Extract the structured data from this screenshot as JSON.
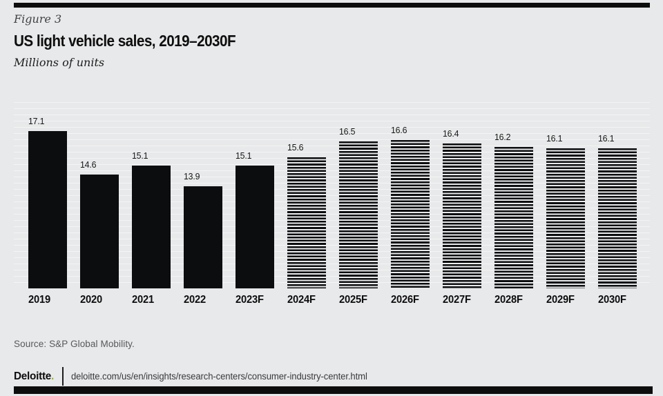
{
  "figure_label": "Figure 3",
  "title": "US light vehicle sales, 2019–2030F",
  "subtitle": "Millions of units",
  "source": "Source: S&P Global Mobility.",
  "footer": {
    "brand": "Deloitte",
    "brand_dot": ".",
    "url": "deloitte.com/us/en/insights/research-centers/consumer-industry-center.html"
  },
  "colors": {
    "background": "#e8e9ea",
    "bar": "#0c0d0e",
    "accent_green": "#86bc25"
  },
  "chart_data": {
    "type": "bar",
    "title": "US light vehicle sales, 2019–2030F",
    "ylabel": "Millions of units",
    "categories": [
      "2019",
      "2020",
      "2021",
      "2022",
      "2023F",
      "2024F",
      "2025F",
      "2026F",
      "2027F",
      "2028F",
      "2029F",
      "2030F"
    ],
    "values": [
      17.1,
      14.6,
      15.1,
      13.9,
      15.1,
      15.6,
      16.5,
      16.6,
      16.4,
      16.2,
      16.1,
      16.1
    ],
    "bar_styles": [
      "solid",
      "solid",
      "solid",
      "solid",
      "solid",
      "striped",
      "striped",
      "striped",
      "striped",
      "striped",
      "striped",
      "striped"
    ],
    "data_labels": true,
    "grid": "faint-horizontal",
    "legend": "none",
    "y_baseline_value": 8,
    "axis": "no visible axis lines; values labeled above bars"
  }
}
